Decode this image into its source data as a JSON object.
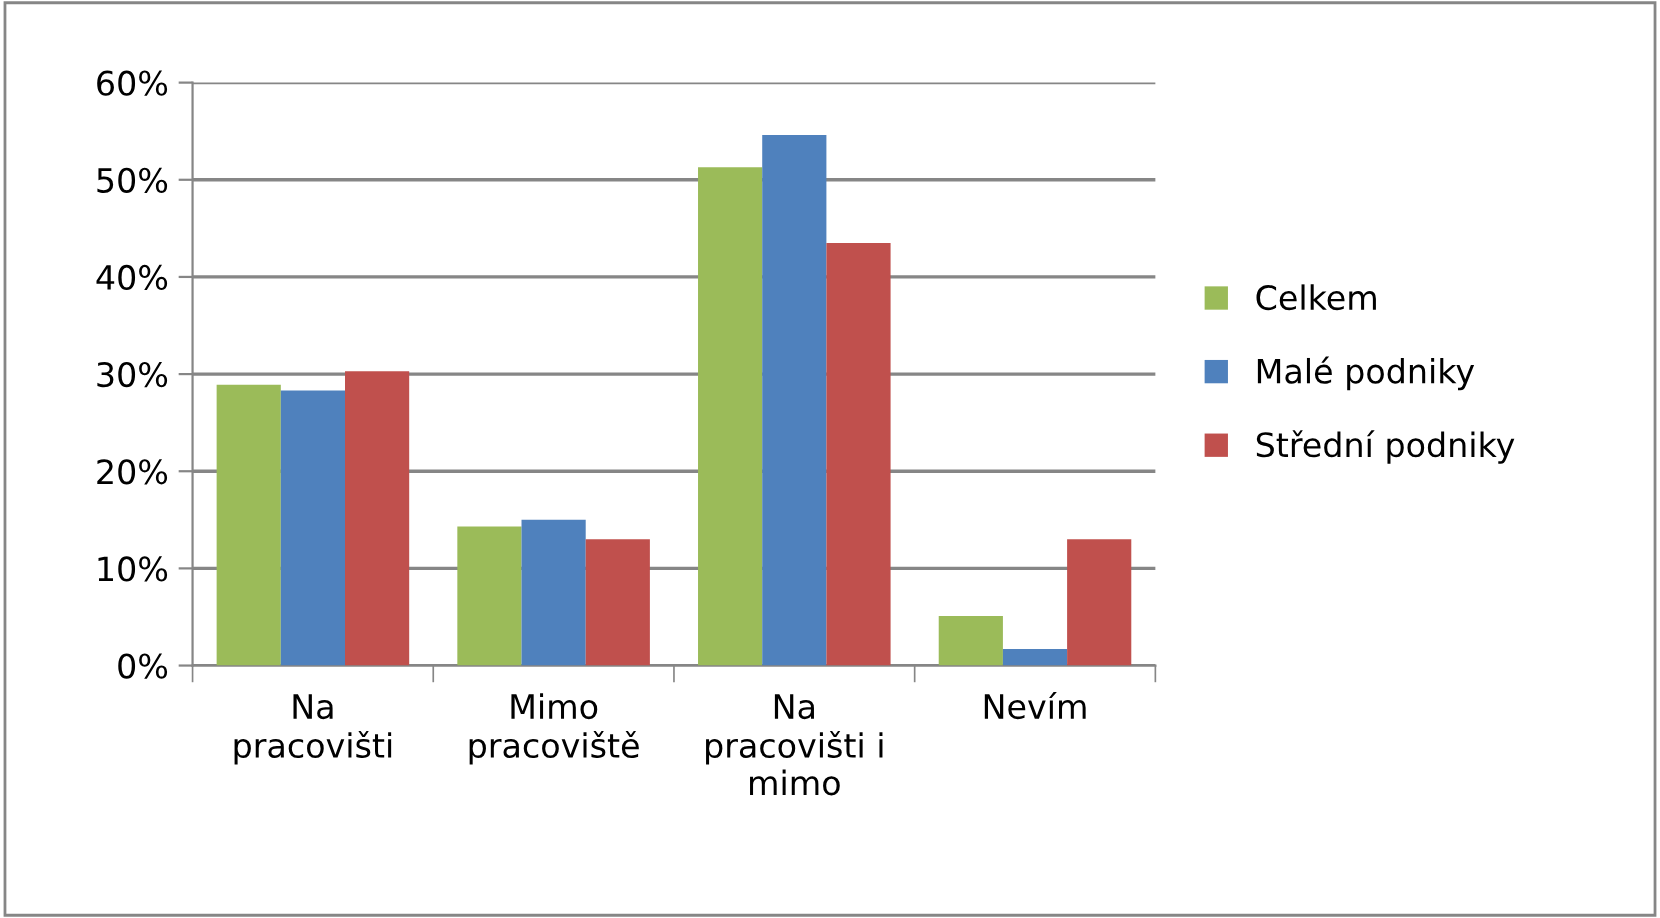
{
  "chart_data": {
    "type": "bar",
    "categories": [
      "Na\npracovišti",
      "Mimo\npracoviště",
      "Na\npracovišti i\nmimo",
      "Nevím"
    ],
    "series": [
      {
        "name": "Celkem",
        "color": "#9bbb59",
        "values": [
          28.9,
          14.3,
          51.3,
          5.1
        ]
      },
      {
        "name": "Malé podniky",
        "color": "#4f81bd",
        "values": [
          28.3,
          15.0,
          54.6,
          1.7
        ]
      },
      {
        "name": "Střední podniky",
        "color": "#c0504d",
        "values": [
          30.3,
          13.0,
          43.5,
          13.0
        ]
      }
    ],
    "ylim": [
      0,
      60
    ],
    "yticks": [
      {
        "value": 0,
        "label": "0%"
      },
      {
        "value": 10,
        "label": "10%"
      },
      {
        "value": 20,
        "label": "20%"
      },
      {
        "value": 30,
        "label": "30%"
      },
      {
        "value": 40,
        "label": "40%"
      },
      {
        "value": 50,
        "label": "50%"
      },
      {
        "value": 60,
        "label": "60%"
      }
    ],
    "grid": "y",
    "legend": "right"
  }
}
